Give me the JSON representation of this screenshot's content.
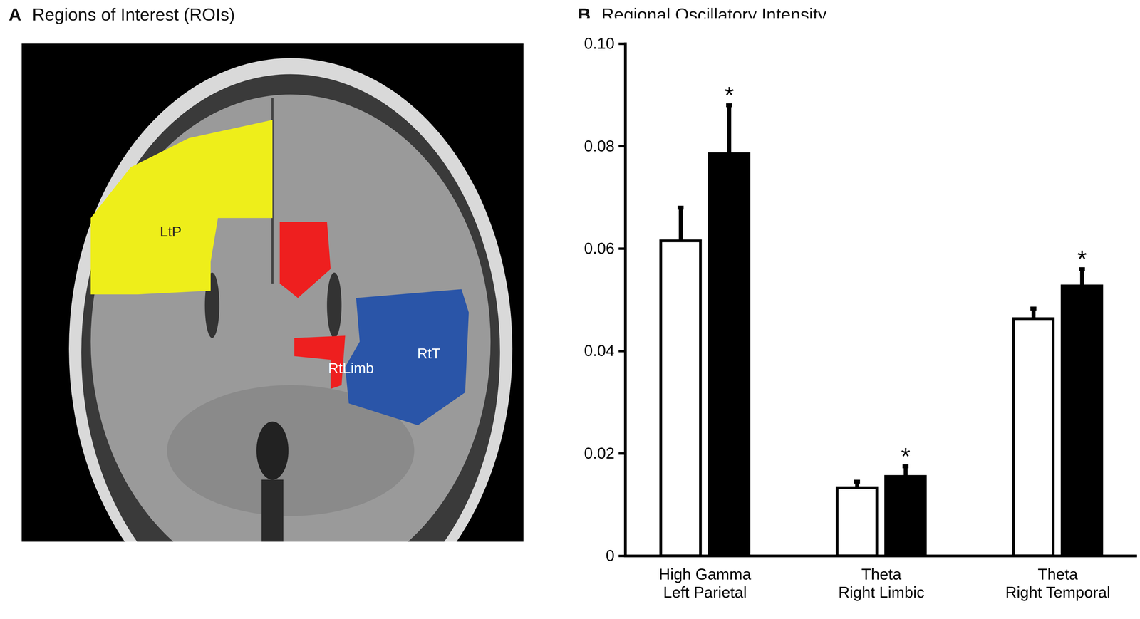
{
  "chart_data": [
    {
      "type": "image",
      "panel_label": "A",
      "title": "Regions of Interest (ROIs)",
      "regions": [
        {
          "label": "LtP",
          "color": "#eeee1a"
        },
        {
          "label": "RtLimb",
          "color": "#ee1f1f"
        },
        {
          "label": "RtT",
          "color": "#2a55a8"
        }
      ]
    },
    {
      "type": "bar",
      "panel_label": "B",
      "title": "Regional Oscillatory Intensity",
      "categories": [
        "High Gamma\nLeft Parietal",
        "Theta\nRight Limbic",
        "Theta\nRight Temporal"
      ],
      "series": [
        {
          "color": "#ffffff",
          "values": [
            0.0615,
            0.0133,
            0.0463
          ],
          "errors": [
            0.0065,
            0.0012,
            0.002
          ]
        },
        {
          "color": "#000000",
          "values": [
            0.0785,
            0.0155,
            0.0527
          ],
          "errors": [
            0.0095,
            0.002,
            0.0033
          ]
        }
      ],
      "significance": [
        "*",
        "*",
        "*"
      ],
      "ylim": [
        0,
        0.1
      ],
      "yticks": [
        0,
        0.02,
        0.04,
        0.06,
        0.08,
        {
          "value": 0.1,
          "label": "0.10"
        }
      ],
      "grid": false
    }
  ]
}
